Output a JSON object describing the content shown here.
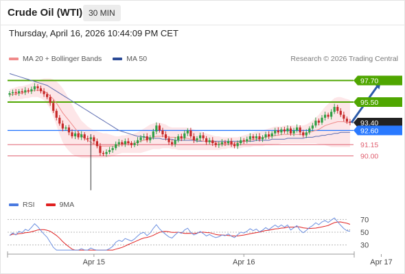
{
  "header": {
    "title": "Crude Oil (WTI)",
    "timeframe": "30 MIN",
    "datetime": "Thursday, April 16, 2026 10:44:09 PM CET"
  },
  "legend": {
    "ma20_label": "MA 20 + Bollinger Bands",
    "ma50_label": "MA 50",
    "rsi_label": "RSI",
    "rsi_ma_label": "9MA",
    "copyright": "Research © 2026 Trading Central"
  },
  "colors": {
    "up": "#2e9e44",
    "down": "#c62828",
    "resistance": "#4fa600",
    "support": "#e06070",
    "pivot": "#2979ff",
    "ma50": "#5a6bb0",
    "ma20": "#f08a8a",
    "bb_fill": "#fde6e8",
    "rsi": "#6a8ee0",
    "rsi_ma": "#e02020",
    "last_price_bg": "#222222",
    "arrow": "#2b5aa8"
  },
  "chart_data": [
    {
      "type": "candlestick",
      "title": "Crude Oil (WTI)",
      "ylim": [
        86.2,
        99.2
      ],
      "x_ticks": [
        {
          "label": "Apr 15",
          "index": 27
        },
        {
          "label": "Apr 16",
          "index": 75
        },
        {
          "label": "Apr 17",
          "index": 119
        }
      ],
      "levels": [
        {
          "value": 97.7,
          "label": "97.70",
          "kind": "resistance"
        },
        {
          "value": 95.5,
          "label": "95.50",
          "kind": "resistance"
        },
        {
          "value": 93.4,
          "label": "93.40",
          "kind": "last"
        },
        {
          "value": 92.6,
          "label": "92.60",
          "kind": "pivot"
        },
        {
          "value": 91.15,
          "label": "91.15",
          "kind": "support"
        },
        {
          "value": 90.0,
          "label": "90.00",
          "kind": "support"
        }
      ],
      "closes": [
        96.4,
        96.5,
        96.4,
        96.6,
        96.5,
        96.7,
        96.6,
        96.8,
        97.1,
        96.9,
        96.6,
        96.3,
        96.0,
        95.4,
        94.6,
        93.9,
        93.3,
        92.8,
        92.9,
        92.4,
        92.0,
        92.3,
        91.9,
        92.2,
        91.8,
        91.7,
        91.9,
        91.5,
        91.0,
        90.3,
        90.2,
        90.4,
        90.6,
        90.8,
        91.2,
        91.4,
        91.2,
        91.5,
        91.3,
        91.1,
        91.3,
        91.6,
        91.9,
        92.0,
        91.6,
        91.9,
        92.5,
        93.1,
        92.6,
        92.2,
        91.8,
        91.4,
        91.2,
        91.6,
        92.0,
        91.8,
        92.3,
        92.6,
        92.0,
        91.6,
        91.8,
        92.1,
        91.8,
        91.4,
        91.6,
        91.3,
        91.1,
        91.2,
        91.4,
        91.3,
        91.5,
        91.2,
        91.0,
        91.3,
        91.6,
        91.5,
        91.7,
        92.0,
        91.8,
        92.0,
        91.7,
        91.9,
        92.2,
        92.0,
        92.3,
        92.6,
        92.4,
        92.7,
        92.5,
        92.8,
        92.3,
        92.6,
        92.9,
        92.4,
        92.1,
        92.4,
        92.8,
        93.1,
        93.6,
        93.4,
        93.9,
        94.2,
        94.0,
        94.5,
        95.0,
        94.6,
        94.2,
        93.8,
        93.5,
        93.4
      ],
      "bb_upper": [
        96.8,
        96.9,
        97.0,
        97.1,
        97.1,
        97.2,
        97.3,
        97.4,
        97.6,
        97.7,
        97.8,
        97.9,
        97.9,
        97.9,
        97.8,
        97.6,
        97.3,
        96.9,
        96.4,
        95.8,
        95.2,
        94.6,
        94.1,
        93.6,
        93.3,
        93.0,
        92.8,
        92.6,
        92.5,
        92.4,
        92.3,
        92.3,
        92.2,
        92.1,
        92.0,
        92.0,
        92.1,
        92.1,
        92.2,
        92.2,
        92.3,
        92.4,
        92.6,
        92.8,
        93.0,
        93.2,
        93.3,
        93.4,
        93.4,
        93.3,
        93.2,
        93.0,
        92.9,
        92.9,
        92.9,
        92.9,
        92.9,
        92.9,
        92.8,
        92.7,
        92.6,
        92.5,
        92.4,
        92.3,
        92.2,
        92.1,
        92.0,
        92.0,
        91.9,
        91.9,
        91.9,
        91.9,
        91.9,
        91.9,
        92.0,
        92.1,
        92.2,
        92.3,
        92.4,
        92.5,
        92.5,
        92.6,
        92.7,
        92.8,
        92.9,
        93.0,
        93.0,
        93.0,
        93.1,
        93.1,
        93.1,
        93.1,
        93.1,
        93.1,
        93.1,
        93.2,
        93.4,
        93.6,
        93.9,
        94.2,
        94.6,
        95.0,
        95.3,
        95.6,
        95.9,
        96.0,
        96.0,
        95.9,
        95.8,
        95.7
      ],
      "bb_lower": [
        95.6,
        95.7,
        95.7,
        95.8,
        95.8,
        95.9,
        95.9,
        96.0,
        96.0,
        96.0,
        95.9,
        95.7,
        95.3,
        94.8,
        94.0,
        93.1,
        92.2,
        91.4,
        90.9,
        90.5,
        90.2,
        90.0,
        89.9,
        89.8,
        89.8,
        89.8,
        89.8,
        89.8,
        89.8,
        89.8,
        89.8,
        89.8,
        89.9,
        90.0,
        90.1,
        90.2,
        90.3,
        90.3,
        90.3,
        90.3,
        90.3,
        90.3,
        90.3,
        90.4,
        90.5,
        90.6,
        90.7,
        90.7,
        90.7,
        90.8,
        90.8,
        90.8,
        90.7,
        90.7,
        90.6,
        90.6,
        90.6,
        90.6,
        90.6,
        90.6,
        90.6,
        90.6,
        90.6,
        90.6,
        90.6,
        90.6,
        90.6,
        90.6,
        90.7,
        90.7,
        90.8,
        90.8,
        90.8,
        90.8,
        90.8,
        90.9,
        90.9,
        90.9,
        91.0,
        91.0,
        91.0,
        91.0,
        91.1,
        91.1,
        91.1,
        91.2,
        91.2,
        91.3,
        91.3,
        91.3,
        91.3,
        91.3,
        91.3,
        91.3,
        91.3,
        91.3,
        91.3,
        91.3,
        91.3,
        91.2,
        91.2,
        91.1,
        91.0,
        90.9,
        90.9,
        90.9,
        90.9,
        90.9,
        90.9,
        90.9
      ],
      "ma20": [
        96.2,
        96.3,
        96.3,
        96.4,
        96.4,
        96.5,
        96.6,
        96.6,
        96.7,
        96.7,
        96.7,
        96.6,
        96.4,
        96.1,
        95.8,
        95.4,
        94.9,
        94.4,
        94.0,
        93.6,
        93.2,
        92.8,
        92.4,
        92.1,
        91.8,
        91.6,
        91.4,
        91.2,
        91.1,
        91.0,
        91.0,
        91.0,
        91.0,
        91.0,
        91.0,
        91.1,
        91.2,
        91.3,
        91.3,
        91.3,
        91.3,
        91.4,
        91.5,
        91.6,
        91.7,
        91.8,
        91.9,
        92.0,
        92.0,
        92.0,
        92.0,
        91.9,
        91.9,
        91.9,
        91.8,
        91.8,
        91.8,
        91.8,
        91.7,
        91.7,
        91.6,
        91.6,
        91.5,
        91.5,
        91.5,
        91.4,
        91.4,
        91.3,
        91.3,
        91.3,
        91.3,
        91.3,
        91.3,
        91.4,
        91.4,
        91.5,
        91.5,
        91.6,
        91.7,
        91.7,
        91.8,
        91.9,
        91.9,
        92.0,
        92.0,
        92.1,
        92.1,
        92.2,
        92.2,
        92.2,
        92.2,
        92.2,
        92.2,
        92.2,
        92.2,
        92.3,
        92.4,
        92.5,
        92.6,
        92.7,
        92.9,
        93.1,
        93.2,
        93.3,
        93.4,
        93.5,
        93.5,
        93.5,
        93.4,
        93.4
      ],
      "ma50": [
        98.4,
        98.3,
        98.2,
        98.1,
        98.0,
        97.9,
        97.8,
        97.7,
        97.6,
        97.5,
        97.4,
        97.3,
        97.2,
        97.0,
        96.8,
        96.6,
        96.4,
        96.2,
        96.0,
        95.8,
        95.6,
        95.4,
        95.2,
        95.0,
        94.8,
        94.6,
        94.4,
        94.2,
        94.0,
        93.8,
        93.6,
        93.4,
        93.2,
        93.0,
        92.8,
        92.6,
        92.5,
        92.4,
        92.3,
        92.2,
        92.1,
        92.0,
        92.0,
        91.9,
        91.9,
        91.8,
        91.8,
        91.8,
        91.8,
        91.7,
        91.7,
        91.7,
        91.7,
        91.6,
        91.6,
        91.6,
        91.6,
        91.6,
        91.6,
        91.6,
        91.5,
        91.5,
        91.5,
        91.5,
        91.5,
        91.5,
        91.5,
        91.5,
        91.5,
        91.5,
        91.5,
        91.5,
        91.5,
        91.5,
        91.5,
        91.5,
        91.5,
        91.5,
        91.5,
        91.6,
        91.6,
        91.6,
        91.6,
        91.6,
        91.7,
        91.7,
        91.7,
        91.7,
        91.7,
        91.8,
        91.8,
        91.8,
        91.8,
        91.8,
        91.8,
        91.9,
        91.9,
        91.9,
        92.0,
        92.0,
        92.1,
        92.1,
        92.2,
        92.2,
        92.3,
        92.3,
        92.4,
        92.4,
        92.4,
        92.4
      ],
      "projection": {
        "from": [
          109,
          93.4
        ],
        "to": [
          119,
          97.7
        ]
      }
    },
    {
      "type": "line",
      "series_names": [
        "RSI",
        "9MA"
      ],
      "ylim": [
        20,
        80
      ],
      "y_ticks": [
        30,
        50,
        70
      ],
      "reference_lines": [
        70,
        50,
        30
      ],
      "rsi_last": 53.5
    }
  ]
}
